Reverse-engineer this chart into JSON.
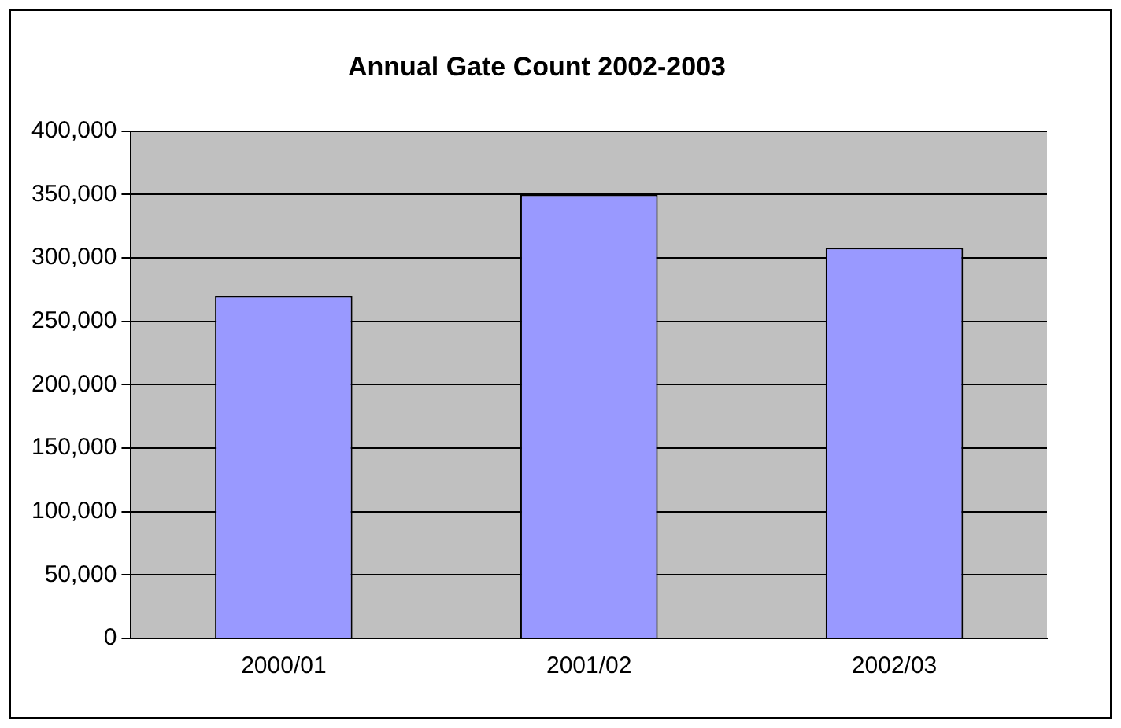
{
  "chart_data": {
    "type": "bar",
    "title": "Annual Gate Count 2002-2003",
    "categories": [
      "2000/01",
      "2001/02",
      "2002/03"
    ],
    "values": [
      270000,
      350000,
      308000
    ],
    "color": "#9999ff",
    "ylim": [
      0,
      400000
    ],
    "yticks": [
      {
        "value": 0,
        "label": "0"
      },
      {
        "value": 50000,
        "label": "50,000"
      },
      {
        "value": 100000,
        "label": "100,000"
      },
      {
        "value": 150000,
        "label": "150,000"
      },
      {
        "value": 200000,
        "label": "200,000"
      },
      {
        "value": 250000,
        "label": "250,000"
      },
      {
        "value": 300000,
        "label": "300,000"
      },
      {
        "value": 350000,
        "label": "350,000"
      },
      {
        "value": 400000,
        "label": "400,000"
      }
    ],
    "grid": "y"
  }
}
